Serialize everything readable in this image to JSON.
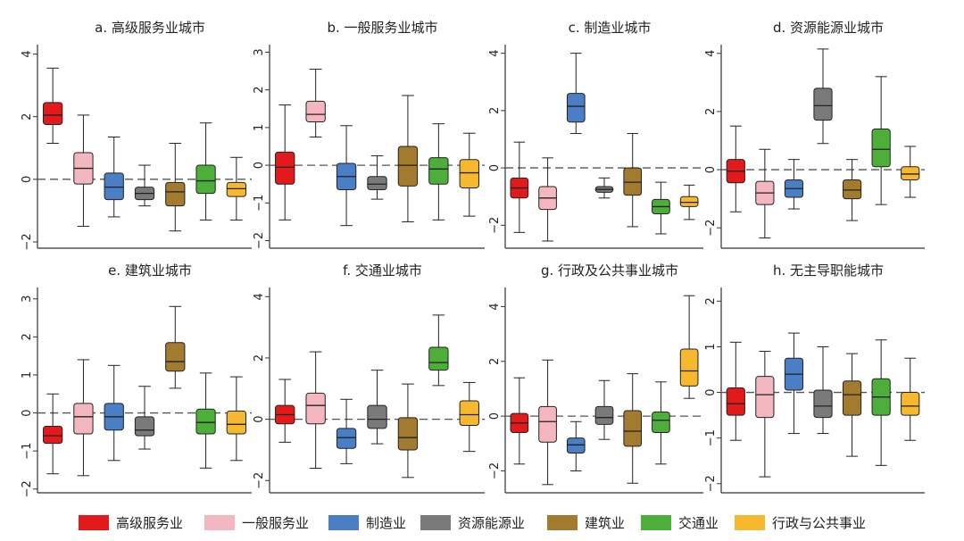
{
  "colors": [
    "#e31a1c",
    "#f4b6bf",
    "#4a7fc5",
    "#7a7a7a",
    "#a37b2f",
    "#4daf3a",
    "#f5b82e"
  ],
  "legend": [
    "高级服务业",
    "一般服务业",
    "制造业",
    "资源能源业",
    "建筑业",
    "交通业",
    "行政与公共事业"
  ],
  "chart_data": [
    {
      "type": "box",
      "title": "a.  高级服务业城市",
      "ylim": [
        -2.2,
        4.3
      ],
      "yticks": [
        -2,
        0,
        2,
        4
      ],
      "ytick_labels": [
        "−2",
        "0",
        "2",
        "4"
      ],
      "categories": [
        "高级服务业",
        "一般服务业",
        "制造业",
        "资源能源业",
        "建筑业",
        "交通业",
        "行政与公共事业"
      ],
      "boxes": [
        [
          1.15,
          1.75,
          2.05,
          2.45,
          3.55
        ],
        [
          -1.5,
          -0.15,
          0.35,
          0.85,
          2.05
        ],
        [
          -1.2,
          -0.65,
          -0.25,
          0.2,
          1.35
        ],
        [
          -0.85,
          -0.65,
          -0.45,
          -0.25,
          0.45
        ],
        [
          -1.65,
          -0.85,
          -0.4,
          -0.1,
          1.15
        ],
        [
          -1.3,
          -0.45,
          -0.05,
          0.45,
          1.8
        ],
        [
          -1.3,
          -0.55,
          -0.3,
          -0.1,
          0.7
        ]
      ]
    },
    {
      "type": "box",
      "title": "b.  一般服务业城市",
      "ylim": [
        -2.2,
        3.2
      ],
      "yticks": [
        -2,
        -1,
        0,
        1,
        2,
        3
      ],
      "ytick_labels": [
        "−2",
        "−1",
        "0",
        "1",
        "2",
        "3"
      ],
      "categories": [
        "高级服务业",
        "一般服务业",
        "制造业",
        "资源能源业",
        "建筑业",
        "交通业",
        "行政与公共事业"
      ],
      "boxes": [
        [
          -1.45,
          -0.5,
          -0.05,
          0.35,
          1.6
        ],
        [
          0.75,
          1.15,
          1.35,
          1.7,
          2.55
        ],
        [
          -1.6,
          -0.65,
          -0.3,
          0.05,
          1.05
        ],
        [
          -0.9,
          -0.65,
          -0.5,
          -0.3,
          0.25
        ],
        [
          -1.5,
          -0.55,
          0.0,
          0.5,
          1.85
        ],
        [
          -1.45,
          -0.5,
          -0.1,
          0.2,
          1.1
        ],
        [
          -1.35,
          -0.6,
          -0.2,
          0.15,
          0.85
        ]
      ]
    },
    {
      "type": "box",
      "title": "c.  制造业城市",
      "ylim": [
        -2.8,
        4.3
      ],
      "yticks": [
        -2,
        0,
        2,
        4
      ],
      "ytick_labels": [
        "−2",
        "0",
        "2",
        "4"
      ],
      "categories": [
        "高级服务业",
        "一般服务业",
        "制造业",
        "资源能源业",
        "建筑业",
        "交通业",
        "行政与公共事业"
      ],
      "boxes": [
        [
          -2.25,
          -1.05,
          -0.7,
          -0.35,
          0.9
        ],
        [
          -2.55,
          -1.45,
          -1.05,
          -0.65,
          0.35
        ],
        [
          1.2,
          1.6,
          2.15,
          2.6,
          4.0
        ],
        [
          -1.05,
          -0.85,
          -0.75,
          -0.65,
          -0.35
        ],
        [
          -2.05,
          -0.95,
          -0.5,
          0.0,
          1.2
        ],
        [
          -2.3,
          -1.6,
          -1.35,
          -1.1,
          -0.5
        ],
        [
          -1.8,
          -1.35,
          -1.2,
          -1.0,
          -0.6
        ]
      ]
    },
    {
      "type": "box",
      "title": "d.  资源能源业城市",
      "ylim": [
        -2.7,
        4.3
      ],
      "yticks": [
        -2,
        0,
        2,
        4
      ],
      "ytick_labels": [
        "−2",
        "0",
        "2",
        "4"
      ],
      "categories": [
        "高级服务业",
        "一般服务业",
        "制造业",
        "资源能源业",
        "建筑业",
        "交通业",
        "行政与公共事业"
      ],
      "boxes": [
        [
          -1.45,
          -0.45,
          -0.05,
          0.35,
          1.5
        ],
        [
          -2.35,
          -1.2,
          -0.8,
          -0.4,
          0.7
        ],
        [
          -1.35,
          -0.95,
          -0.65,
          -0.35,
          0.35
        ],
        [
          0.9,
          1.7,
          2.2,
          2.8,
          4.15
        ],
        [
          -1.75,
          -1.0,
          -0.7,
          -0.35,
          0.35
        ],
        [
          -1.2,
          0.1,
          0.7,
          1.4,
          3.2
        ],
        [
          -0.95,
          -0.35,
          -0.15,
          0.1,
          0.8
        ]
      ]
    },
    {
      "type": "box",
      "title": "e.  建筑业城市",
      "ylim": [
        -2.1,
        3.3
      ],
      "yticks": [
        -2,
        -1,
        0,
        1,
        2,
        3
      ],
      "ytick_labels": [
        "−2",
        "−1",
        "0",
        "1",
        "2",
        "3"
      ],
      "categories": [
        "高级服务业",
        "一般服务业",
        "制造业",
        "资源能源业",
        "建筑业",
        "交通业",
        "行政与公共事业"
      ],
      "boxes": [
        [
          -1.6,
          -0.8,
          -0.6,
          -0.35,
          0.5
        ],
        [
          -1.65,
          -0.55,
          -0.1,
          0.25,
          1.4
        ],
        [
          -1.25,
          -0.45,
          -0.1,
          0.25,
          1.25
        ],
        [
          -0.95,
          -0.6,
          -0.45,
          -0.1,
          0.7
        ],
        [
          0.65,
          1.1,
          1.35,
          1.85,
          2.8
        ],
        [
          -1.45,
          -0.55,
          -0.25,
          0.1,
          1.05
        ],
        [
          -1.25,
          -0.55,
          -0.3,
          0.05,
          0.95
        ]
      ]
    },
    {
      "type": "box",
      "title": "f.  交通业城市",
      "ylim": [
        -2.4,
        4.3
      ],
      "yticks": [
        -2,
        0,
        2,
        4
      ],
      "ytick_labels": [
        "−2",
        "0",
        "2",
        "4"
      ],
      "categories": [
        "高级服务业",
        "一般服务业",
        "制造业",
        "资源能源业",
        "建筑业",
        "交通业",
        "行政与公共事业"
      ],
      "boxes": [
        [
          -0.75,
          -0.15,
          0.15,
          0.45,
          1.3
        ],
        [
          -1.6,
          -0.15,
          0.45,
          0.85,
          2.2
        ],
        [
          -1.45,
          -0.95,
          -0.6,
          -0.3,
          0.65
        ],
        [
          -0.8,
          -0.3,
          0.0,
          0.45,
          1.6
        ],
        [
          -1.9,
          -1.0,
          -0.6,
          0.05,
          1.15
        ],
        [
          1.1,
          1.6,
          1.85,
          2.35,
          3.4
        ],
        [
          -1.05,
          -0.2,
          0.15,
          0.6,
          1.2
        ]
      ]
    },
    {
      "type": "box",
      "title": "g.  行政及公共事业城市",
      "ylim": [
        -2.8,
        4.7
      ],
      "yticks": [
        -2,
        0,
        2,
        4
      ],
      "ytick_labels": [
        "−2",
        "0",
        "2",
        "4"
      ],
      "categories": [
        "高级服务业",
        "一般服务业",
        "制造业",
        "资源能源业",
        "建筑业",
        "交通业",
        "行政与公共事业"
      ],
      "boxes": [
        [
          -1.75,
          -0.6,
          -0.25,
          0.1,
          1.4
        ],
        [
          -2.5,
          -0.95,
          -0.2,
          0.35,
          2.05
        ],
        [
          -2.0,
          -1.35,
          -1.05,
          -0.8,
          -0.2
        ],
        [
          -0.85,
          -0.3,
          -0.05,
          0.35,
          1.3
        ],
        [
          -2.45,
          -1.1,
          -0.55,
          0.2,
          1.55
        ],
        [
          -1.75,
          -0.6,
          -0.15,
          0.15,
          1.25
        ],
        [
          0.65,
          1.1,
          1.65,
          2.45,
          4.4
        ]
      ]
    },
    {
      "type": "box",
      "title": "h.  无主导职能城市",
      "ylim": [
        -2.2,
        2.3
      ],
      "yticks": [
        -2,
        -1,
        0,
        1,
        2
      ],
      "ytick_labels": [
        "−2",
        "−1",
        "0",
        "1",
        "2"
      ],
      "categories": [
        "高级服务业",
        "一般服务业",
        "制造业",
        "资源能源业",
        "建筑业",
        "交通业",
        "行政与公共事业"
      ],
      "boxes": [
        [
          -1.05,
          -0.5,
          -0.25,
          0.1,
          1.1
        ],
        [
          -1.85,
          -0.55,
          -0.05,
          0.35,
          0.9
        ],
        [
          -0.9,
          0.05,
          0.4,
          0.75,
          1.3
        ],
        [
          -0.9,
          -0.55,
          -0.3,
          0.05,
          1.0
        ],
        [
          -1.4,
          -0.5,
          -0.05,
          0.25,
          0.85
        ],
        [
          -1.6,
          -0.5,
          -0.1,
          0.3,
          1.15
        ],
        [
          -1.05,
          -0.5,
          -0.3,
          0.0,
          0.75
        ]
      ]
    }
  ]
}
